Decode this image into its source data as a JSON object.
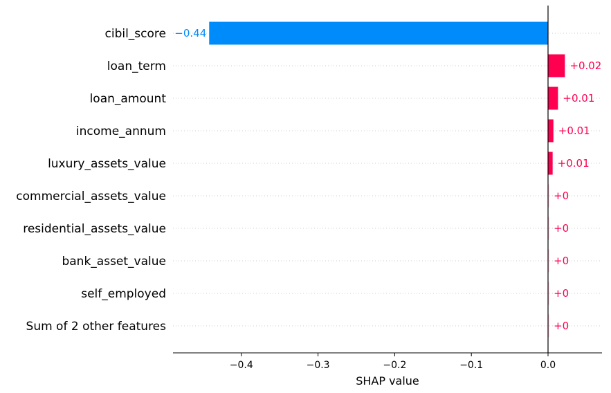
{
  "chart_data": {
    "type": "bar",
    "xlabel": "SHAP value",
    "xlim": [
      -0.49,
      0.07
    ],
    "xticks": [
      "−0.4",
      "−0.3",
      "−0.2",
      "−0.1",
      "0.0"
    ],
    "xtick_values": [
      -0.4,
      -0.3,
      -0.2,
      -0.1,
      0.0
    ],
    "grid": "horizontal dotted",
    "colors": {
      "negative": "#008bfb",
      "positive": "#ff0051"
    },
    "bars": [
      {
        "feature": "cibil_score",
        "value": -0.442,
        "label": "−0.44"
      },
      {
        "feature": "loan_term",
        "value": 0.022,
        "label": "+0.02"
      },
      {
        "feature": "loan_amount",
        "value": 0.013,
        "label": "+0.01"
      },
      {
        "feature": "income_annum",
        "value": 0.007,
        "label": "+0.01"
      },
      {
        "feature": "luxury_assets_value",
        "value": 0.006,
        "label": "+0.01"
      },
      {
        "feature": "commercial_assets_value",
        "value": 0.001,
        "label": "+0"
      },
      {
        "feature": "residential_assets_value",
        "value": 0.001,
        "label": "+0"
      },
      {
        "feature": "bank_asset_value",
        "value": 0.001,
        "label": "+0"
      },
      {
        "feature": "self_employed",
        "value": 0.001,
        "label": "+0"
      },
      {
        "feature": "Sum of 2 other features",
        "value": 0.001,
        "label": "+0"
      }
    ]
  }
}
